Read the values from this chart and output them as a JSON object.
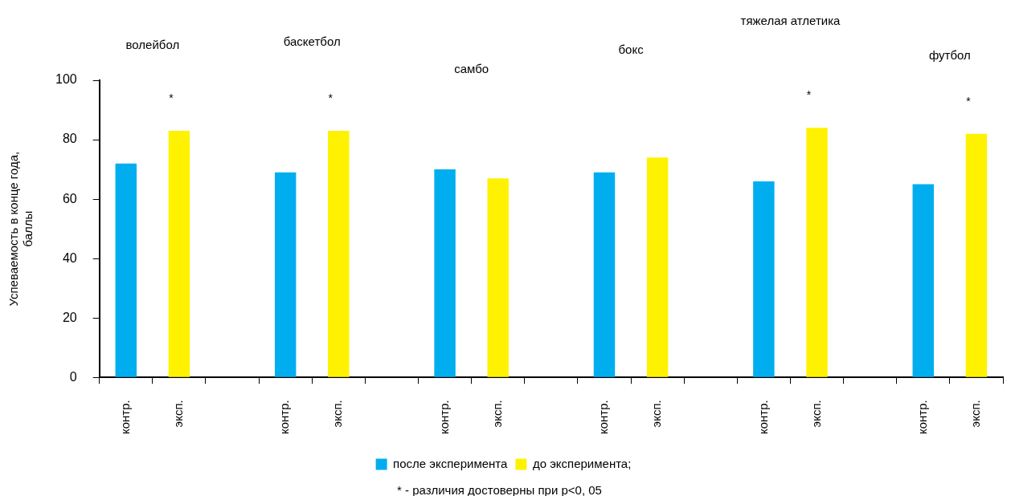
{
  "chart_data": {
    "type": "bar",
    "ylabel": "Успеваемость в конце года, баллы",
    "categories": [
      "контр.",
      "эксп.",
      null,
      "контр.",
      "эксп.",
      null,
      "контр.",
      "эксп.",
      null,
      "контр.",
      "эксп.",
      null,
      "контр.",
      "эксп.",
      null,
      "контр.",
      "эксп."
    ],
    "series": [
      {
        "name": "после эксперимента",
        "color": "#00aeef",
        "values": [
          72,
          null,
          null,
          69,
          null,
          null,
          70,
          null,
          null,
          69,
          null,
          null,
          66,
          null,
          null,
          65,
          null
        ]
      },
      {
        "name": "до эксперимента;",
        "color": "#fff200",
        "values": [
          null,
          83,
          null,
          null,
          83,
          null,
          null,
          67,
          null,
          null,
          74,
          null,
          null,
          84,
          null,
          null,
          82
        ],
        "value_labels": [
          null,
          "*",
          null,
          null,
          "*",
          null,
          null,
          null,
          null,
          null,
          null,
          null,
          null,
          "*",
          null,
          null,
          "*"
        ]
      }
    ],
    "ylim": [
      0,
      100
    ],
    "yticks": [
      0,
      20,
      40,
      60,
      80,
      100
    ],
    "legend": "bottom",
    "annotations": [
      "волейбол",
      "баскетбол",
      "самбо",
      "бокс",
      "тяжелая атлетика",
      "футбол",
      "* - различия достоверны при р<0, 05"
    ]
  }
}
